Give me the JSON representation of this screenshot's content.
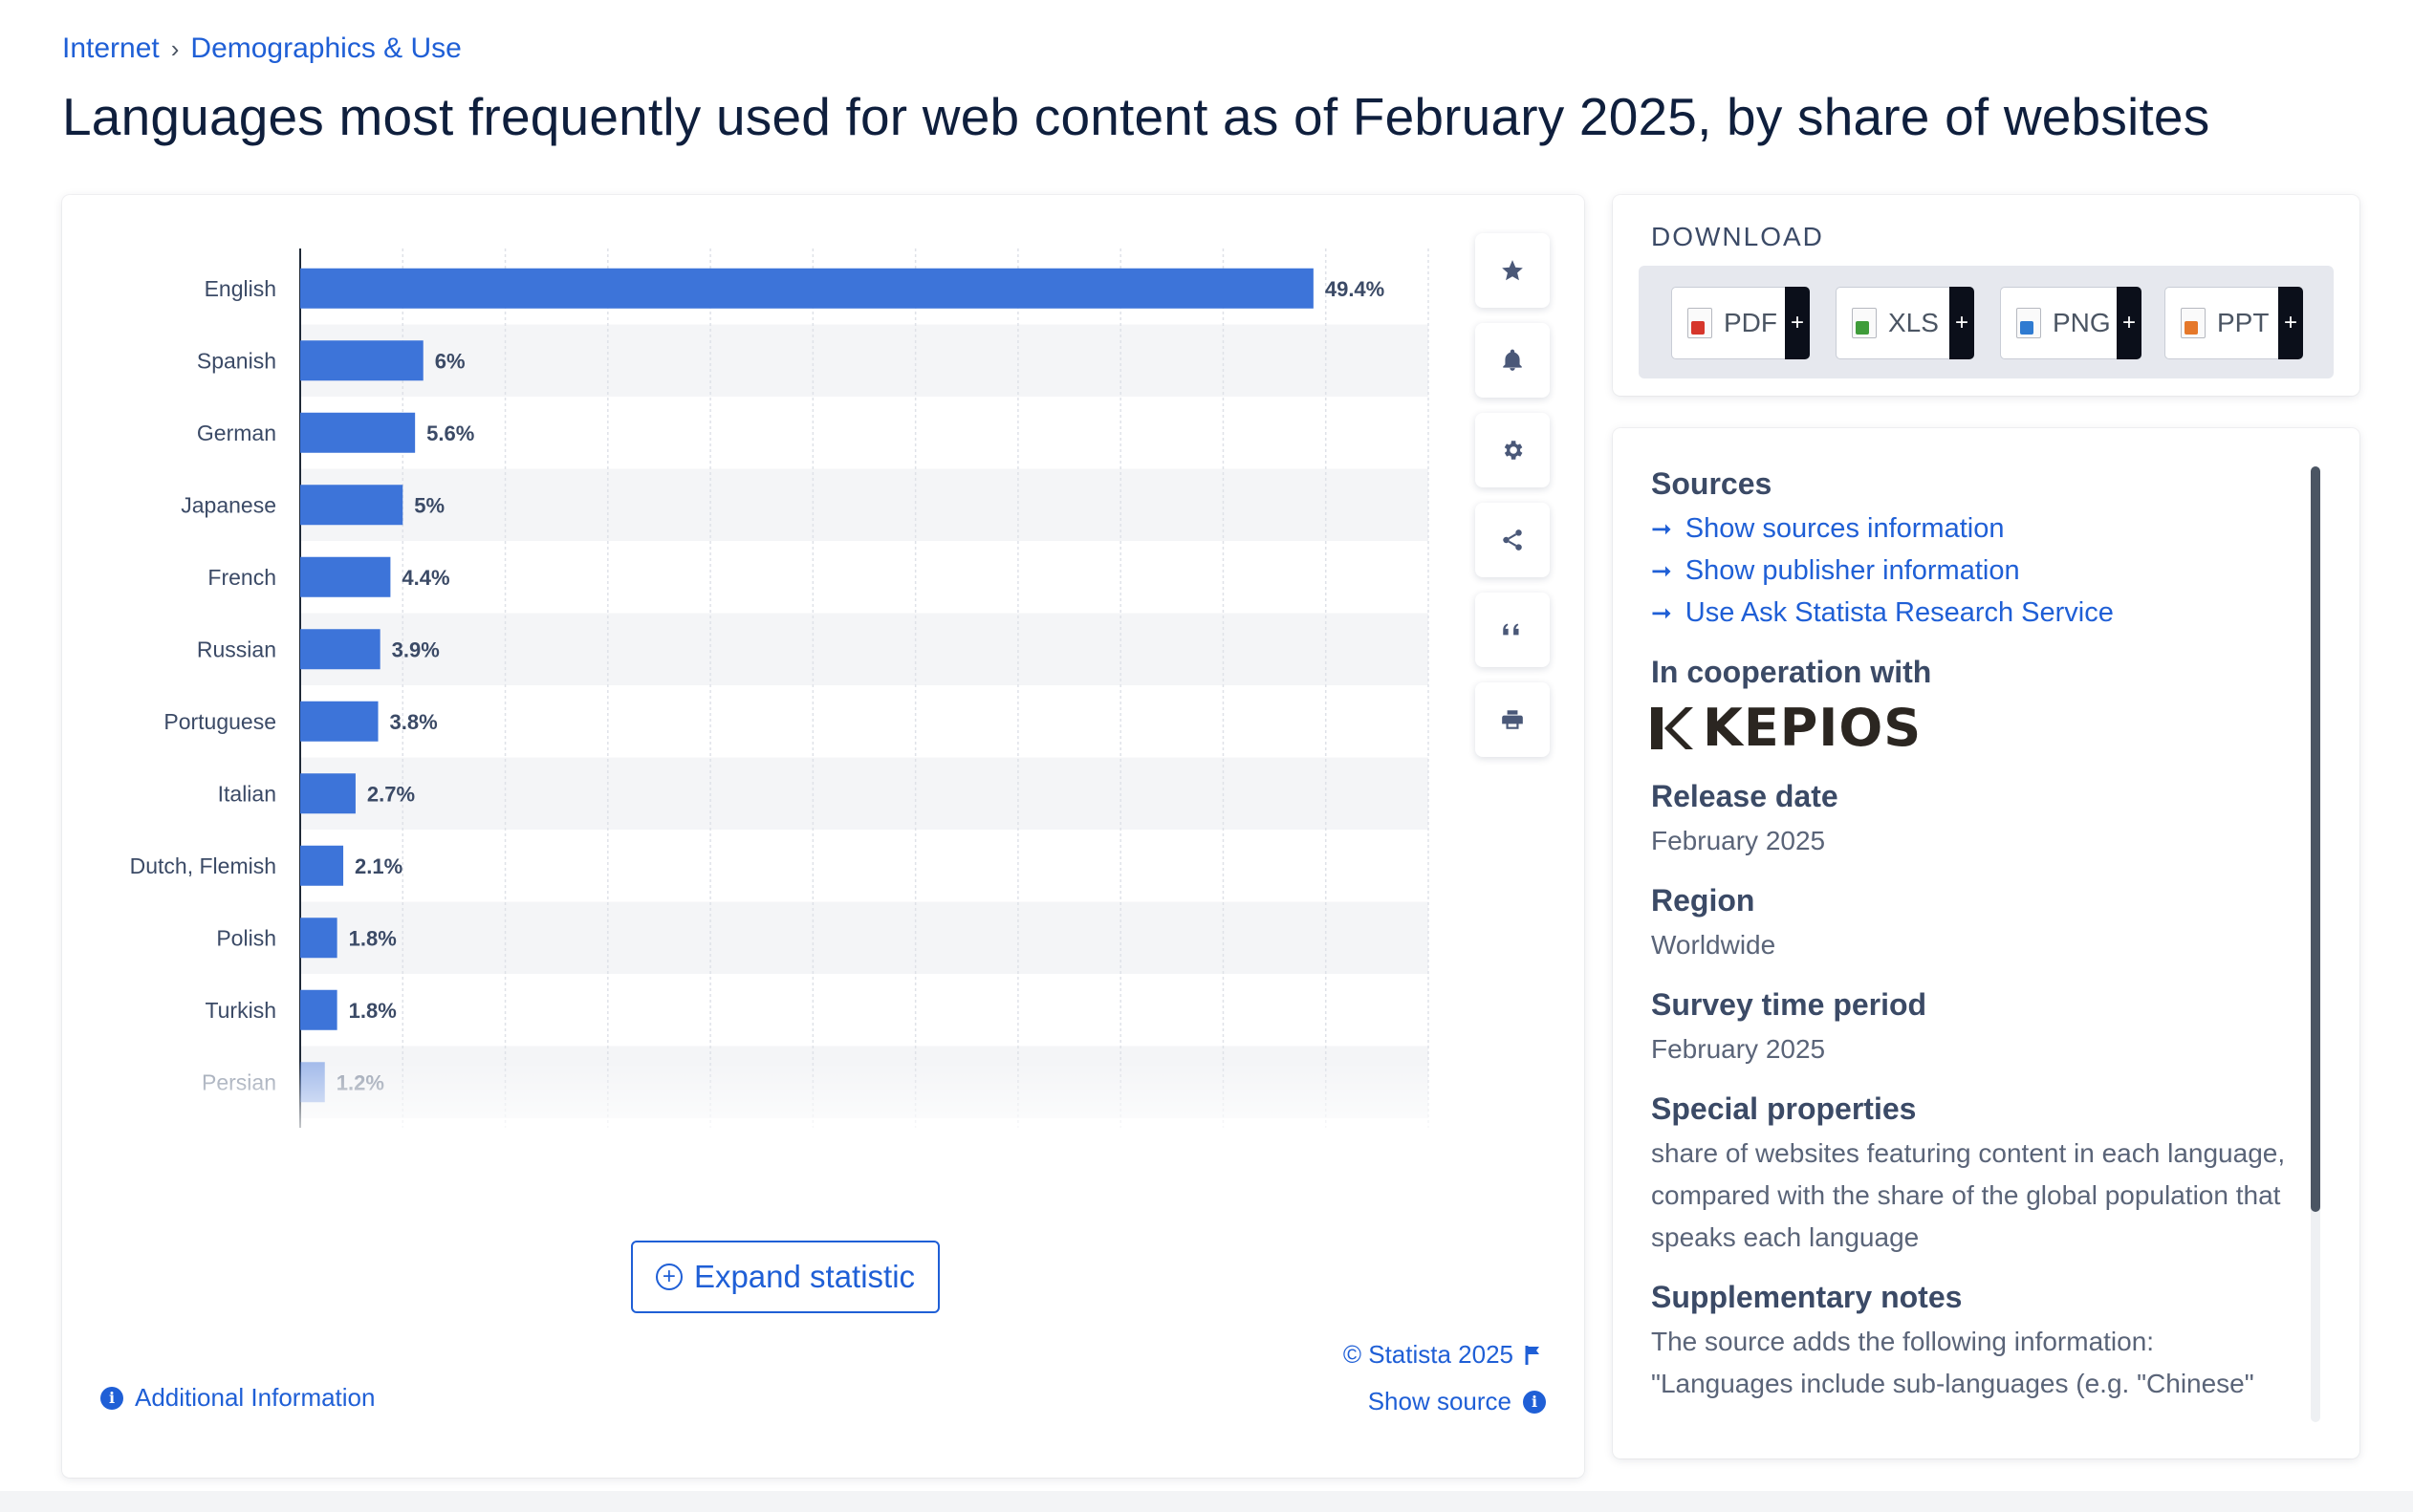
{
  "breadcrumb": {
    "items": [
      "Internet",
      "Demographics & Use"
    ],
    "separator": "›"
  },
  "page": {
    "title": "Languages most frequently used for web content as of February 2025, by share of websites"
  },
  "chart_data": {
    "type": "bar",
    "orientation": "horizontal",
    "categories": [
      "English",
      "Spanish",
      "German",
      "Japanese",
      "French",
      "Russian",
      "Portuguese",
      "Italian",
      "Dutch, Flemish",
      "Polish",
      "Turkish",
      "Persian"
    ],
    "values": [
      49.4,
      6,
      5.6,
      5,
      4.4,
      3.9,
      3.8,
      2.7,
      2.1,
      1.8,
      1.8,
      1.2
    ],
    "value_labels": [
      "49.4%",
      "6%",
      "5.6%",
      "5%",
      "4.4%",
      "3.9%",
      "3.8%",
      "2.7%",
      "2.1%",
      "1.8%",
      "1.8%",
      "1.2%"
    ],
    "xlim": [
      0,
      55
    ],
    "grid": true,
    "bar_color": "#3d74d9"
  },
  "chart_card": {
    "expand_label": "Expand statistic",
    "copyright": "© Statista 2025",
    "show_source": "Show source",
    "additional_info": "Additional Information",
    "tools": [
      "star-icon",
      "bell-icon",
      "gear-icon",
      "share-icon",
      "quote-icon",
      "print-icon"
    ]
  },
  "download": {
    "title": "DOWNLOAD",
    "buttons": [
      {
        "label": "PDF",
        "color": "#d6362b"
      },
      {
        "label": "XLS",
        "color": "#3f9c3a"
      },
      {
        "label": "PNG",
        "color": "#2f7bd1"
      },
      {
        "label": "PPT",
        "color": "#e5782a"
      }
    ],
    "plus": "+"
  },
  "info": {
    "sources_title": "Sources",
    "sources_links": [
      "Show sources information",
      "Show publisher information",
      "Use Ask Statista Research Service"
    ],
    "coop_title": "In cooperation with",
    "coop_logo_text": "KEPIOS",
    "release_title": "Release date",
    "release_value": "February 2025",
    "region_title": "Region",
    "region_value": "Worldwide",
    "survey_title": "Survey time period",
    "survey_value": "February 2025",
    "special_title": "Special properties",
    "special_value": "share of websites featuring content in each language, compared with the share of the global population that speaks each language",
    "supp_title": "Supplementary notes",
    "supp_value": "The source adds the following information: \"Languages include sub-languages (e.g. \"Chinese\""
  }
}
